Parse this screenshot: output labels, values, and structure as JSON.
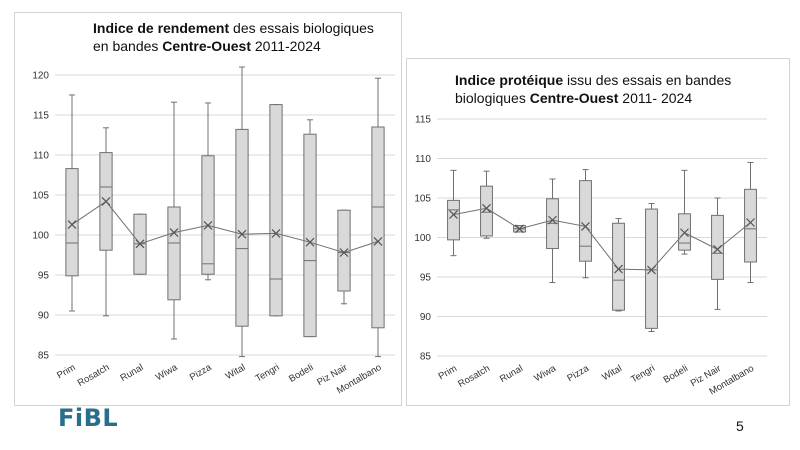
{
  "slide": {
    "logo": "FiBL",
    "page_number": "5"
  },
  "chart_data": [
    {
      "type": "boxplot",
      "title_parts": [
        {
          "text": "Indice de rendement",
          "bold": true
        },
        {
          "text": " des essais biologiques en bandes ",
          "bold": false
        },
        {
          "text": "Centre-Ouest",
          "bold": true
        },
        {
          "text": " 2011-2024",
          "bold": false
        }
      ],
      "ylim": [
        85,
        120
      ],
      "yticks": [
        85,
        90,
        95,
        100,
        105,
        110,
        115,
        120
      ],
      "grid": true,
      "categories": [
        "Prim",
        "Rosatch",
        "Runal",
        "Wiwa",
        "Pizza",
        "Wital",
        "Tengri",
        "Bodeli",
        "Piz Nair",
        "Montalbano"
      ],
      "boxes": [
        {
          "min": 90.5,
          "q1": 94.9,
          "median": 99.0,
          "q3": 108.3,
          "max": 117.5,
          "mean": 101.3
        },
        {
          "min": 89.9,
          "q1": 98.1,
          "median": 106.0,
          "q3": 110.3,
          "max": 113.4,
          "mean": 104.2
        },
        {
          "min": 95.1,
          "q1": 95.1,
          "median": 98.9,
          "q3": 102.6,
          "max": 102.6,
          "mean": 98.9
        },
        {
          "min": 87.0,
          "q1": 91.9,
          "median": 99.0,
          "q3": 103.5,
          "max": 116.6,
          "mean": 100.3
        },
        {
          "min": 94.4,
          "q1": 95.1,
          "median": 96.4,
          "q3": 109.9,
          "max": 116.5,
          "mean": 101.2
        },
        {
          "min": 84.8,
          "q1": 88.6,
          "median": 98.3,
          "q3": 113.2,
          "max": 121.0,
          "mean": 100.1
        },
        {
          "min": 89.9,
          "q1": 89.9,
          "median": 94.5,
          "q3": 116.3,
          "max": 116.3,
          "mean": 100.2
        },
        {
          "min": 87.3,
          "q1": 87.3,
          "median": 96.8,
          "q3": 112.6,
          "max": 114.4,
          "mean": 99.1
        },
        {
          "min": 91.4,
          "q1": 93.0,
          "median": 97.8,
          "q3": 103.1,
          "max": 103.1,
          "mean": 97.8
        },
        {
          "min": 84.8,
          "q1": 88.4,
          "median": 103.5,
          "q3": 113.5,
          "max": 119.6,
          "mean": 99.2
        }
      ]
    },
    {
      "type": "boxplot",
      "title_parts": [
        {
          "text": "Indice protéique",
          "bold": true
        },
        {
          "text": " issu des essais en bandes biologiques ",
          "bold": false
        },
        {
          "text": "Centre-Ouest",
          "bold": true
        },
        {
          "text": " 2011- 2024",
          "bold": false
        }
      ],
      "ylim": [
        85,
        115
      ],
      "yticks": [
        85,
        90,
        95,
        100,
        105,
        110,
        115
      ],
      "grid": true,
      "categories": [
        "Prim",
        "Rosatch",
        "Runal",
        "Wiwa",
        "Pizza",
        "Wital",
        "Tengri",
        "Bodeli",
        "Piz Nair",
        "Montalbano"
      ],
      "boxes": [
        {
          "min": 97.7,
          "q1": 99.7,
          "median": 103.5,
          "q3": 104.7,
          "max": 108.5,
          "mean": 102.9
        },
        {
          "min": 99.9,
          "q1": 100.2,
          "median": 103.2,
          "q3": 106.5,
          "max": 108.4,
          "mean": 103.7
        },
        {
          "min": 100.7,
          "q1": 100.7,
          "median": 101.1,
          "q3": 101.5,
          "max": 101.5,
          "mean": 101.1
        },
        {
          "min": 94.3,
          "q1": 98.6,
          "median": 101.8,
          "q3": 104.9,
          "max": 107.4,
          "mean": 102.2
        },
        {
          "min": 94.9,
          "q1": 97.0,
          "median": 98.9,
          "q3": 107.2,
          "max": 108.6,
          "mean": 101.4
        },
        {
          "min": 90.7,
          "q1": 90.8,
          "median": 94.6,
          "q3": 101.8,
          "max": 102.4,
          "mean": 96.0
        },
        {
          "min": 88.1,
          "q1": 88.5,
          "median": 95.9,
          "q3": 103.6,
          "max": 104.3,
          "mean": 95.9
        },
        {
          "min": 97.9,
          "q1": 98.4,
          "median": 99.3,
          "q3": 103.0,
          "max": 108.5,
          "mean": 100.6
        },
        {
          "min": 90.9,
          "q1": 94.7,
          "median": 98.0,
          "q3": 102.8,
          "max": 105.0,
          "mean": 98.5
        },
        {
          "min": 94.3,
          "q1": 96.9,
          "median": 101.1,
          "q3": 106.1,
          "max": 109.5,
          "mean": 101.9
        }
      ]
    }
  ]
}
